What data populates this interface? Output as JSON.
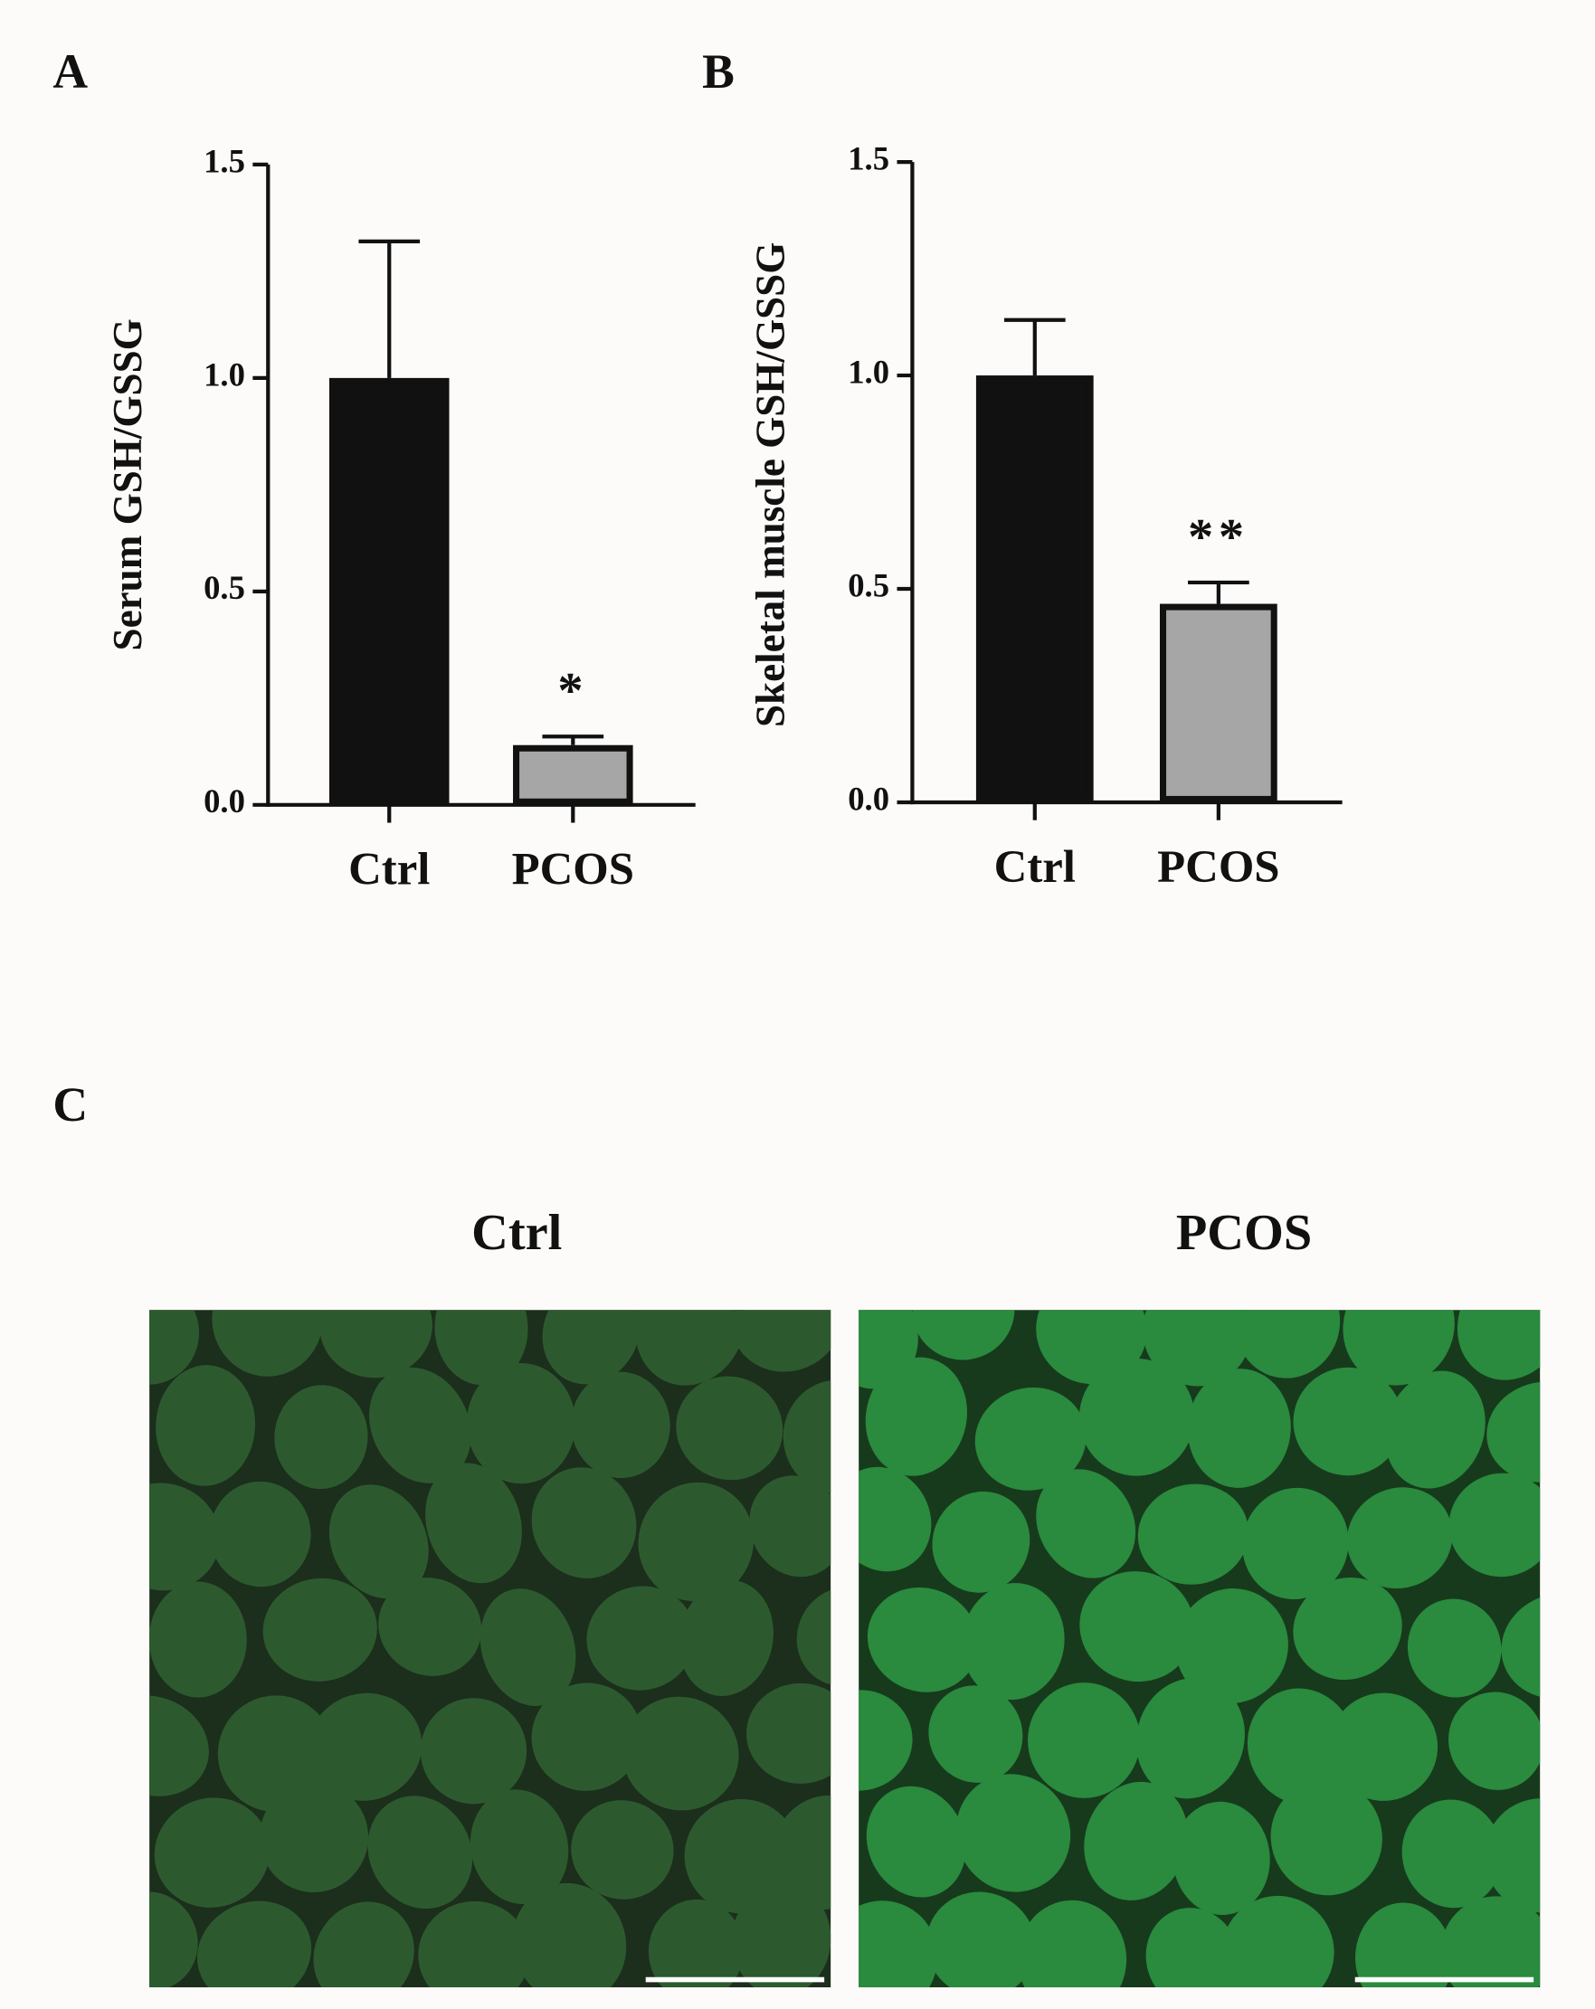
{
  "chart_data": [
    {
      "type": "bar",
      "panel_label": "A",
      "y_label": "Serum GSH/GSSG",
      "categories": [
        "Ctrl",
        "PCOS"
      ],
      "values": [
        1.0,
        0.14
      ],
      "errors": [
        0.32,
        0.02
      ],
      "colors": [
        "#111111",
        "#a6a6a6"
      ],
      "annotation": "*",
      "ylim": [
        0,
        1.5
      ],
      "yticks": [
        {
          "value": 0,
          "label": "0.0"
        },
        0.5,
        {
          "value": 1,
          "label": "1.0"
        },
        1.5
      ]
    },
    {
      "type": "bar",
      "panel_label": "B",
      "y_label": "Skeletal muscle GSH/GSSG",
      "categories": [
        "Ctrl",
        "PCOS"
      ],
      "values": [
        1.0,
        0.465
      ],
      "errors": [
        0.13,
        0.05
      ],
      "colors": [
        "#111111",
        "#a6a6a6"
      ],
      "annotation": "**",
      "ylim": [
        0,
        1.5
      ],
      "yticks": [
        {
          "value": 0,
          "label": "0.0"
        },
        0.5,
        {
          "value": 1,
          "label": "1.0"
        },
        1.5
      ]
    }
  ],
  "panel_c": {
    "label": "C",
    "titles": [
      "Ctrl",
      "PCOS"
    ]
  }
}
